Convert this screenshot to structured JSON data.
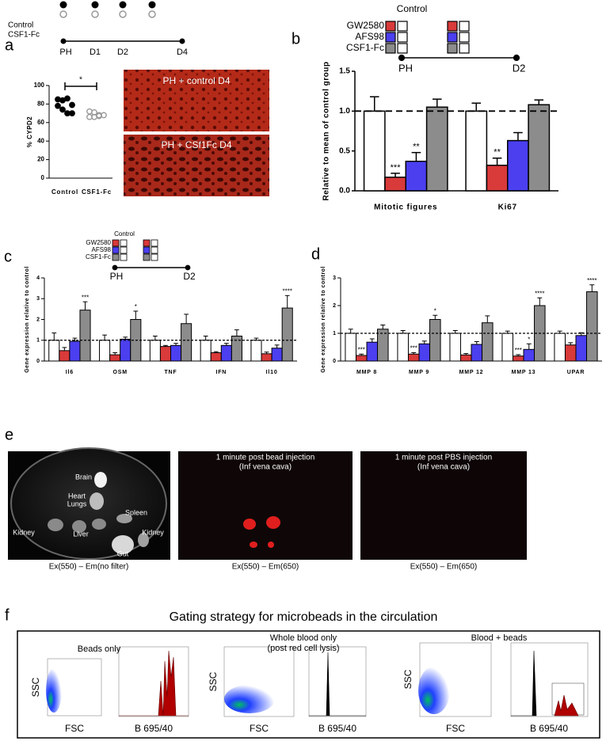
{
  "figure": {
    "panel_labels": [
      "a",
      "b",
      "c",
      "d",
      "e",
      "f"
    ]
  },
  "panel_a": {
    "timeline": {
      "rows": [
        "Control",
        "CSF1-Fc"
      ],
      "points": [
        "PH",
        "D1",
        "D2",
        "D4"
      ]
    },
    "images": [
      "PH + control D4",
      "PH + CSf1Fc D4"
    ]
  },
  "panel_b": {
    "timeline": [
      "PH",
      "D2"
    ]
  },
  "panel_c": {
    "timeline": [
      "PH",
      "D2"
    ]
  },
  "panel_e": {
    "organs": [
      "Brain",
      "Heart",
      "Lungs",
      "Spleen",
      "Kidney",
      "Liver",
      "Kidney",
      "Gut"
    ],
    "middle_title": [
      "1 minute post bead injection",
      "(Inf vena cava)"
    ],
    "right_title": [
      "1 minute post PBS injection",
      "(Inf vena cava)"
    ],
    "captions": [
      "Ex(550) – Em(no filter)",
      "Ex(550) – Em(650)",
      "Ex(550) – Em(650)"
    ]
  },
  "panel_f": {
    "title": "Gating strategy for microbeads in the circulation",
    "subtitles": [
      "Beads only",
      "Whole blood only",
      "(post red cell lysis)",
      "Blood + beads"
    ],
    "y_axis": "SSC",
    "x_axis_scatter": "FSC",
    "x_axis_hist": "B 695/40"
  },
  "chart_data": [
    {
      "type": "strip",
      "ylabel": "% CYPD2",
      "categories": [
        "Control",
        "CSF1-Fc"
      ],
      "ylim": [
        0,
        100
      ],
      "yticks": [
        0,
        20,
        40,
        60,
        80,
        100
      ],
      "annotation": "*",
      "series": [
        {
          "color": "#000000",
          "values": [
            85,
            84,
            86,
            79,
            78,
            74,
            70,
            70
          ]
        },
        {
          "color": "#9a9a9a",
          "values": [
            72,
            71,
            68,
            68,
            66,
            66,
            67
          ]
        }
      ]
    },
    {
      "type": "bar",
      "ylabel": "Relative to mean of control group",
      "categories": [
        "Mitotic figures",
        "Ki67"
      ],
      "ylim": [
        0,
        1.5
      ],
      "yticks": [
        {
          "value": 0,
          "label": "0.0"
        },
        0.5,
        {
          "value": 1,
          "label": "1.0"
        },
        1.5
      ],
      "reference_line": 1,
      "series": [
        {
          "name": "Control",
          "color": "#ffffff",
          "values": [
            1.0,
            1.0
          ],
          "errors": [
            0.18,
            0.1
          ],
          "annotations": [
            null,
            null
          ]
        },
        {
          "name": "GW2580",
          "color": "#d93a3a",
          "values": [
            0.17,
            0.32
          ],
          "errors": [
            0.05,
            0.09
          ],
          "annotations": [
            "***",
            "**"
          ]
        },
        {
          "name": "AFS98",
          "color": "#4b3ff0",
          "values": [
            0.37,
            0.63
          ],
          "errors": [
            0.11,
            0.1
          ],
          "annotations": [
            "**",
            null
          ]
        },
        {
          "name": "CSF1-Fc",
          "color": "#8c8c8c",
          "values": [
            1.05,
            1.08
          ],
          "errors": [
            0.1,
            0.06
          ],
          "annotations": [
            null,
            null
          ]
        }
      ]
    },
    {
      "type": "bar",
      "ylabel": "Gene expression relative to control",
      "categories": [
        "Il6",
        "OSM",
        "TNF",
        "IFN",
        "Il10"
      ],
      "ylim": [
        0,
        4
      ],
      "yticks": [
        0,
        1,
        2,
        3,
        4
      ],
      "reference_line": 1,
      "series": [
        {
          "name": "Control",
          "color": "#ffffff",
          "values": [
            1,
            1,
            1,
            1,
            1
          ],
          "errors": [
            0.35,
            0.25,
            0.2,
            0.2,
            0.1
          ],
          "annotations": [
            null,
            null,
            null,
            null,
            null
          ]
        },
        {
          "name": "GW2580",
          "color": "#d93a3a",
          "values": [
            0.5,
            0.3,
            0.7,
            0.4,
            0.35
          ],
          "errors": [
            0.15,
            0.1,
            0.05,
            0.05,
            0.08
          ],
          "annotations": [
            null,
            null,
            null,
            null,
            null
          ]
        },
        {
          "name": "AFS98",
          "color": "#4b3ff0",
          "values": [
            0.95,
            1.05,
            0.75,
            0.75,
            0.62
          ],
          "errors": [
            0.15,
            0.1,
            0.1,
            0.1,
            0.15
          ],
          "annotations": [
            null,
            null,
            null,
            null,
            null
          ]
        },
        {
          "name": "CSF1-Fc",
          "color": "#8c8c8c",
          "values": [
            2.45,
            2.0,
            1.8,
            1.2,
            2.55
          ],
          "errors": [
            0.4,
            0.4,
            0.45,
            0.3,
            0.6
          ],
          "annotations": [
            "***",
            "*",
            null,
            null,
            "****"
          ]
        }
      ]
    },
    {
      "type": "bar",
      "ylabel": "Gene expression relative to control",
      "categories": [
        "MMP 8",
        "MMP 9",
        "MMP 12",
        "MMP 13",
        "UPAR"
      ],
      "ylim": [
        0,
        3
      ],
      "yticks": [
        0,
        1,
        2,
        3
      ],
      "reference_line": 1,
      "series": [
        {
          "name": "Control",
          "color": "#ffffff",
          "values": [
            1,
            1,
            1,
            1,
            1
          ],
          "errors": [
            0.15,
            0.1,
            0.1,
            0.08,
            0.08
          ],
          "annotations": [
            null,
            null,
            null,
            null,
            null
          ]
        },
        {
          "name": "GW2580",
          "color": "#d93a3a",
          "values": [
            0.2,
            0.25,
            0.22,
            0.18,
            0.58
          ],
          "errors": [
            0.05,
            0.05,
            0.05,
            0.05,
            0.08
          ],
          "annotations": [
            "***",
            "***",
            null,
            "***",
            null
          ]
        },
        {
          "name": "AFS98",
          "color": "#4b3ff0",
          "values": [
            0.68,
            0.62,
            0.6,
            0.42,
            0.92
          ],
          "errors": [
            0.12,
            0.1,
            0.1,
            0.2,
            0.1
          ],
          "annotations": [
            null,
            null,
            null,
            "*",
            null
          ]
        },
        {
          "name": "CSF1-Fc",
          "color": "#8c8c8c",
          "values": [
            1.15,
            1.5,
            1.38,
            2.0,
            2.5
          ],
          "errors": [
            0.15,
            0.15,
            0.25,
            0.28,
            0.25
          ],
          "annotations": [
            null,
            "*",
            null,
            "****",
            "****"
          ]
        }
      ]
    }
  ]
}
